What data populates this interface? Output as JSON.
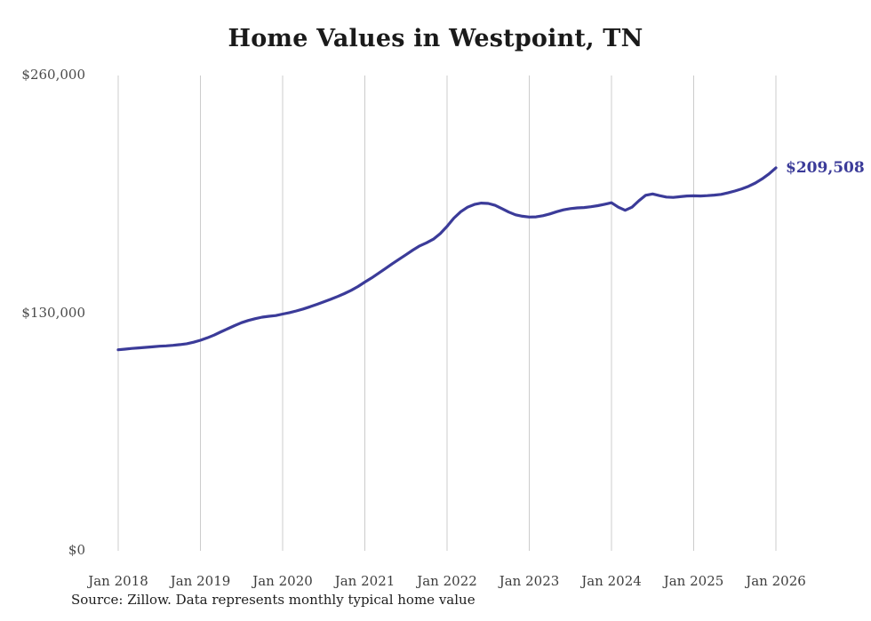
{
  "page": {
    "source_note": "Source: Zillow. Data represents monthly typical home value"
  },
  "chart_data": {
    "type": "line",
    "title": "Home Values in Westpoint, TN",
    "series_name": "Monthly typical home value",
    "legend": "none",
    "grid": "vertical",
    "line_color": "#3b3b99",
    "grid_color": "#cccccc",
    "ylim": [
      0,
      260000
    ],
    "y_tick_values": [
      0,
      130000,
      260000
    ],
    "y_tick_labels": [
      "$0",
      "$130,000",
      "$260,000"
    ],
    "x_tick_labels": [
      "Jan 2018",
      "Jan 2019",
      "Jan 2020",
      "Jan 2021",
      "Jan 2022",
      "Jan 2023",
      "Jan 2024",
      "Jan 2025",
      "Jan 2026"
    ],
    "x": [
      "2018-01",
      "2018-02",
      "2018-03",
      "2018-04",
      "2018-05",
      "2018-06",
      "2018-07",
      "2018-08",
      "2018-09",
      "2018-10",
      "2018-11",
      "2018-12",
      "2019-01",
      "2019-02",
      "2019-03",
      "2019-04",
      "2019-05",
      "2019-06",
      "2019-07",
      "2019-08",
      "2019-09",
      "2019-10",
      "2019-11",
      "2019-12",
      "2020-01",
      "2020-02",
      "2020-03",
      "2020-04",
      "2020-05",
      "2020-06",
      "2020-07",
      "2020-08",
      "2020-09",
      "2020-10",
      "2020-11",
      "2020-12",
      "2021-01",
      "2021-02",
      "2021-03",
      "2021-04",
      "2021-05",
      "2021-06",
      "2021-07",
      "2021-08",
      "2021-09",
      "2021-10",
      "2021-11",
      "2021-12",
      "2022-01",
      "2022-02",
      "2022-03",
      "2022-04",
      "2022-05",
      "2022-06",
      "2022-07",
      "2022-08",
      "2022-09",
      "2022-10",
      "2022-11",
      "2022-12",
      "2023-01",
      "2023-02",
      "2023-03",
      "2023-04",
      "2023-05",
      "2023-06",
      "2023-07",
      "2023-08",
      "2023-09",
      "2023-10",
      "2023-11",
      "2023-12",
      "2024-01",
      "2024-02",
      "2024-03",
      "2024-04",
      "2024-05",
      "2024-06",
      "2024-07",
      "2024-08",
      "2024-09",
      "2024-10",
      "2024-11",
      "2024-12",
      "2025-01",
      "2025-02",
      "2025-03",
      "2025-04",
      "2025-05",
      "2025-06",
      "2025-07",
      "2025-08",
      "2025-09",
      "2025-10",
      "2025-11",
      "2025-12",
      "2026-01"
    ],
    "values": [
      110000,
      110300,
      110700,
      111000,
      111300,
      111600,
      111900,
      112100,
      112400,
      112800,
      113300,
      114100,
      115200,
      116500,
      118000,
      119800,
      121500,
      123200,
      124800,
      126000,
      127000,
      127800,
      128300,
      128700,
      129500,
      130300,
      131200,
      132300,
      133500,
      134800,
      136200,
      137600,
      139100,
      140700,
      142500,
      144600,
      147000,
      149300,
      151800,
      154400,
      157000,
      159500,
      162000,
      164500,
      166800,
      168500,
      170500,
      173500,
      177500,
      182000,
      185500,
      188000,
      189500,
      190200,
      190000,
      189000,
      187200,
      185300,
      183800,
      183000,
      182600,
      182700,
      183300,
      184300,
      185500,
      186500,
      187200,
      187600,
      187800,
      188200,
      188800,
      189600,
      190400,
      188000,
      186300,
      188000,
      191500,
      194500,
      195200,
      194300,
      193500,
      193300,
      193700,
      194100,
      194200,
      194100,
      194300,
      194600,
      195000,
      195800,
      196800,
      198000,
      199400,
      201200,
      203500,
      206200,
      209508
    ],
    "end_annotation": {
      "text": "$209,508",
      "value": 209508
    }
  }
}
